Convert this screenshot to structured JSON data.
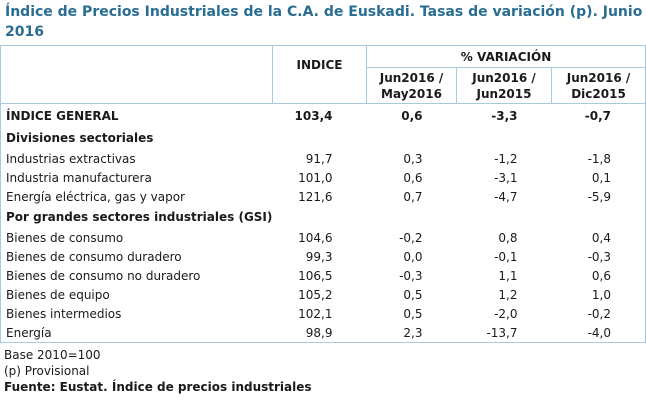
{
  "header": {
    "title": "Índice de Precios Industriales de la C.A. de Euskadi. Tasas de variación (p). Junio 2016"
  },
  "table": {
    "index_header": "INDICE",
    "variation_header": "% VARIACIÓN",
    "variation_columns": [
      [
        "Jun2016 /",
        "May2016"
      ],
      [
        "Jun2016 /",
        "Jun2015"
      ],
      [
        "Jun2016 /",
        "Dic2015"
      ]
    ],
    "general": {
      "label": "ÍNDICE GENERAL",
      "values": [
        "103,4",
        "0,6",
        "-3,3",
        "-0,7"
      ]
    },
    "sections": [
      {
        "title": "Divisiones sectoriales",
        "rows": [
          {
            "label": "Industrias extractivas",
            "values": [
              "91,7",
              "0,3",
              "-1,2",
              "-1,8"
            ]
          },
          {
            "label": "Industria manufacturera",
            "values": [
              "101,0",
              "0,6",
              "-3,1",
              "0,1"
            ]
          },
          {
            "label": "Energía eléctrica, gas y vapor",
            "values": [
              "121,6",
              "0,7",
              "-4,7",
              "-5,9"
            ]
          }
        ]
      },
      {
        "title": "Por grandes sectores industriales (GSI)",
        "rows": [
          {
            "label": "Bienes de consumo",
            "values": [
              "104,6",
              "-0,2",
              "0,8",
              "0,4"
            ],
            "rows": [
              {
                "label": "Bienes de consumo duradero",
                "values": [
                  "99,3",
                  "0,0",
                  "-0,1",
                  "-0,3"
                ]
              },
              {
                "label": "Bienes de consumo no duradero",
                "values": [
                  "106,5",
                  "-0,3",
                  "1,1",
                  "0,6"
                ]
              }
            ]
          },
          {
            "label": "Bienes de equipo",
            "values": [
              "105,2",
              "0,5",
              "1,2",
              "1,0"
            ]
          },
          {
            "label": "Bienes intermedios",
            "values": [
              "102,1",
              "0,5",
              "-2,0",
              "-0,2"
            ]
          },
          {
            "label": "Energía",
            "values": [
              "98,9",
              "2,3",
              "-13,7",
              "-4,0"
            ]
          }
        ]
      }
    ]
  },
  "notes": [
    "Base 2010=100",
    "(p) Provisional"
  ],
  "source": "Fuente: Eustat. Índice de precios industriales"
}
